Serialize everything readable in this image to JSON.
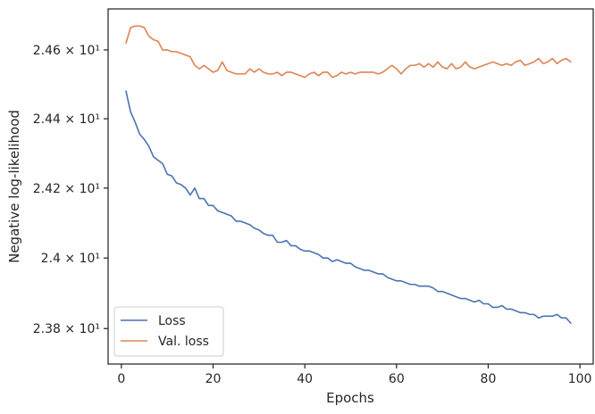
{
  "chart_data": {
    "type": "line",
    "xlabel": "Epochs",
    "ylabel": "Negative log-likelihood",
    "xlim": [
      -2.9,
      102.9
    ],
    "ylim": [
      23.7,
      24.72
    ],
    "y_scale": "log",
    "x_ticks": [
      0,
      20,
      40,
      60,
      80,
      100
    ],
    "y_ticks": [
      {
        "value": 23.8,
        "label": "2.38 × 10¹"
      },
      {
        "value": 24.0,
        "label": "2.4 × 10¹"
      },
      {
        "value": 24.2,
        "label": "2.42 × 10¹"
      },
      {
        "value": 24.4,
        "label": "2.44 × 10¹"
      },
      {
        "value": 24.6,
        "label": "2.46 × 10¹"
      }
    ],
    "grid": false,
    "legend_position": "lower-left",
    "x": [
      1,
      2,
      3,
      4,
      5,
      6,
      7,
      8,
      9,
      10,
      11,
      12,
      13,
      14,
      15,
      16,
      17,
      18,
      19,
      20,
      21,
      22,
      23,
      24,
      25,
      26,
      27,
      28,
      29,
      30,
      31,
      32,
      33,
      34,
      35,
      36,
      37,
      38,
      39,
      40,
      41,
      42,
      43,
      44,
      45,
      46,
      47,
      48,
      49,
      50,
      51,
      52,
      53,
      54,
      55,
      56,
      57,
      58,
      59,
      60,
      61,
      62,
      63,
      64,
      65,
      66,
      67,
      68,
      69,
      70,
      71,
      72,
      73,
      74,
      75,
      76,
      77,
      78,
      79,
      80,
      81,
      82,
      83,
      84,
      85,
      86,
      87,
      88,
      89,
      90,
      91,
      92,
      93,
      94,
      95,
      96,
      97,
      98
    ],
    "series": [
      {
        "name": "Loss",
        "color": "#4c72b0",
        "values": [
          24.48,
          24.42,
          24.39,
          24.355,
          24.34,
          24.32,
          24.29,
          24.28,
          24.27,
          24.24,
          24.235,
          24.215,
          24.21,
          24.2,
          24.18,
          24.2,
          24.17,
          24.17,
          24.15,
          24.15,
          24.135,
          24.13,
          24.125,
          24.12,
          24.105,
          24.105,
          24.1,
          24.095,
          24.085,
          24.08,
          24.07,
          24.065,
          24.065,
          24.045,
          24.045,
          24.05,
          24.035,
          24.035,
          24.025,
          24.02,
          24.02,
          24.015,
          24.01,
          24.0,
          24.0,
          23.99,
          23.995,
          23.99,
          23.985,
          23.985,
          23.975,
          23.97,
          23.965,
          23.965,
          23.96,
          23.955,
          23.955,
          23.945,
          23.94,
          23.935,
          23.935,
          23.93,
          23.925,
          23.925,
          23.92,
          23.92,
          23.92,
          23.915,
          23.905,
          23.905,
          23.9,
          23.895,
          23.89,
          23.885,
          23.885,
          23.88,
          23.875,
          23.88,
          23.87,
          23.87,
          23.86,
          23.86,
          23.865,
          23.855,
          23.855,
          23.85,
          23.845,
          23.845,
          23.84,
          23.84,
          23.83,
          23.835,
          23.835,
          23.835,
          23.84,
          23.83,
          23.83,
          23.815
        ]
      },
      {
        "name": "Val. loss",
        "color": "#dd8452",
        "values": [
          24.62,
          24.665,
          24.67,
          24.67,
          24.665,
          24.64,
          24.63,
          24.625,
          24.6,
          24.6,
          24.595,
          24.595,
          24.59,
          24.585,
          24.58,
          24.555,
          24.545,
          24.555,
          24.545,
          24.535,
          24.54,
          24.565,
          24.54,
          24.535,
          24.53,
          24.53,
          24.53,
          24.545,
          24.535,
          24.545,
          24.535,
          24.53,
          24.53,
          24.535,
          24.525,
          24.535,
          24.535,
          24.53,
          24.525,
          24.52,
          24.53,
          24.535,
          24.525,
          24.535,
          24.535,
          24.52,
          24.525,
          24.535,
          24.53,
          24.535,
          24.53,
          24.535,
          24.535,
          24.535,
          24.535,
          24.53,
          24.535,
          24.545,
          24.555,
          24.545,
          24.53,
          24.545,
          24.555,
          24.555,
          24.56,
          24.55,
          24.56,
          24.55,
          24.565,
          24.55,
          24.545,
          24.56,
          24.545,
          24.55,
          24.565,
          24.55,
          24.545,
          24.55,
          24.555,
          24.56,
          24.565,
          24.56,
          24.555,
          24.56,
          24.555,
          24.565,
          24.57,
          24.555,
          24.56,
          24.565,
          24.575,
          24.56,
          24.565,
          24.575,
          24.56,
          24.57,
          24.575,
          24.565
        ]
      }
    ]
  }
}
